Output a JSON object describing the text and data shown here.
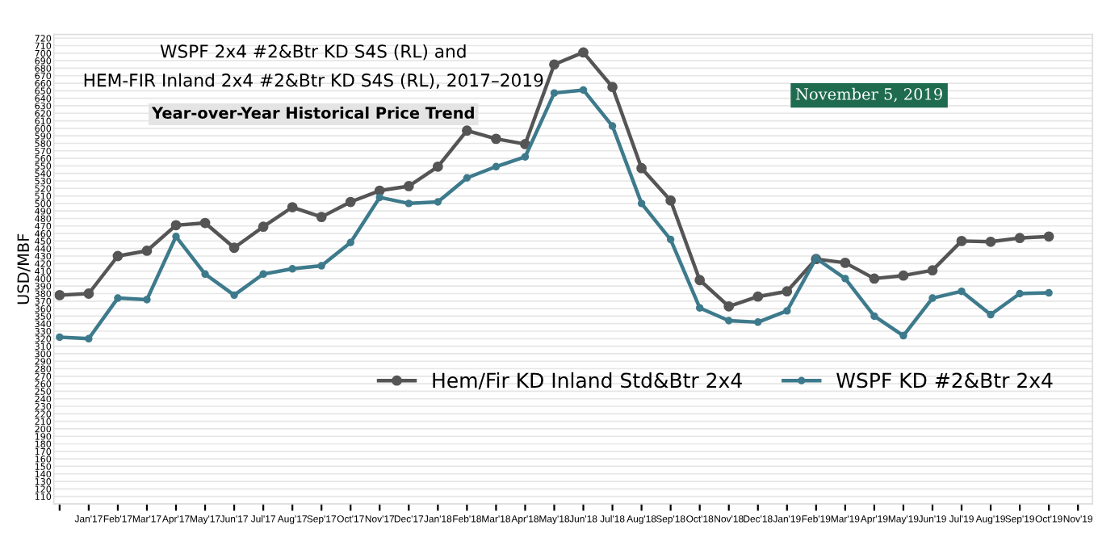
{
  "chart_data": {
    "type": "line",
    "title": "WSPF 2x4 #2&Btr KD S4S (RL) and\nHEM-FIR Inland 2x4 #2&Btr KD S4S (RL), 2017–2019",
    "subtitle": "Year-over-Year Historical Price Trend",
    "ylabel": "USD/MBF",
    "annotations": [
      "November 5, 2019"
    ],
    "categories": [
      null,
      "Jan'17",
      "Feb'17",
      "Mar'17",
      "Apr'17",
      "May'17",
      "Jun'17",
      "Jul'17",
      "Aug'17",
      "Sep'17",
      "Oct'17",
      "Nov'17",
      "Dec'17",
      "Jan'18",
      "Feb'18",
      "Mar'18",
      "Apr'18",
      "May'18",
      "Jun'18",
      "Jul'18",
      "Aug'18",
      "Sep'18",
      "Oct'18",
      "Nov'18",
      "Dec'18",
      "Jan'19",
      "Feb'19",
      "Mar'19",
      "Apr'19",
      "May'19",
      "Jun'19",
      "Jul'19",
      "Aug'19",
      "Sep'19",
      "Oct'19",
      "Nov'19"
    ],
    "series": [
      {
        "name": "Hem/Fir KD Inland Std&Btr 2x4",
        "color": "#555555",
        "values": [
          378,
          380,
          430,
          437,
          471,
          474,
          441,
          469,
          495,
          482,
          502,
          517,
          523,
          549,
          597,
          586,
          579,
          685,
          701,
          655,
          547,
          504,
          398,
          363,
          376,
          383,
          426,
          421,
          400,
          404,
          411,
          450,
          449,
          454,
          456,
          null
        ]
      },
      {
        "name": "WSPF KD #2&Btr 2x4",
        "color": "#3d7a8c",
        "values": [
          322,
          320,
          374,
          372,
          456,
          406,
          378,
          406,
          413,
          417,
          448,
          508,
          500,
          502,
          534,
          549,
          562,
          647,
          651,
          603,
          500,
          452,
          361,
          344,
          342,
          357,
          427,
          400,
          350,
          324,
          374,
          383,
          352,
          380,
          381,
          null
        ]
      }
    ],
    "ylim": [
      100,
      725
    ],
    "yticks": [
      110,
      120,
      130,
      140,
      150,
      160,
      170,
      180,
      190,
      200,
      210,
      220,
      230,
      240,
      250,
      260,
      270,
      280,
      290,
      300,
      310,
      320,
      330,
      340,
      350,
      360,
      370,
      380,
      390,
      400,
      410,
      420,
      430,
      440,
      450,
      460,
      470,
      480,
      490,
      500,
      510,
      520,
      530,
      540,
      550,
      560,
      570,
      580,
      590,
      600,
      610,
      620,
      630,
      640,
      650,
      660,
      670,
      680,
      690,
      700,
      710,
      720
    ],
    "grid": "y",
    "legend": "lower right",
    "marker": "circle",
    "line_style": "solid"
  }
}
